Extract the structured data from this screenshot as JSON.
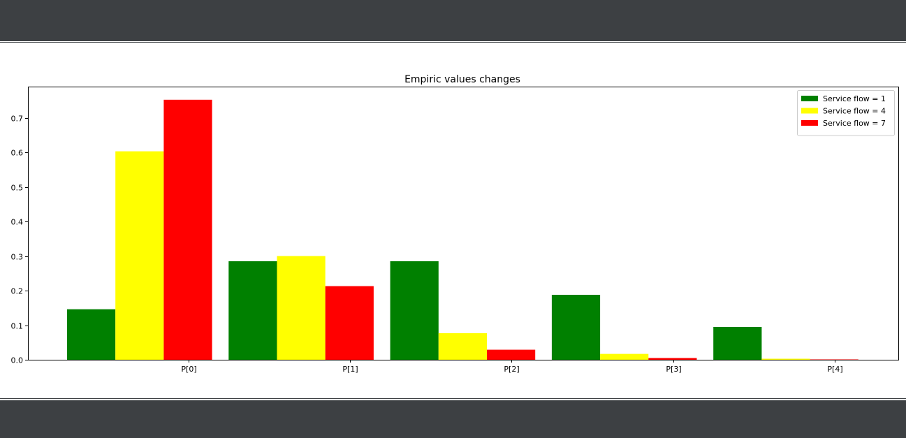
{
  "chart_data": {
    "type": "bar",
    "title": "Empiric values changes",
    "xlabel": "",
    "ylabel": "",
    "categories": [
      "P[0]",
      "P[1]",
      "P[2]",
      "P[3]",
      "P[4]"
    ],
    "series": [
      {
        "name": "Service flow = 1",
        "color": "#008000",
        "values": [
          0.146,
          0.285,
          0.285,
          0.188,
          0.095
        ]
      },
      {
        "name": "Service flow = 4",
        "color": "#ffff00",
        "values": [
          0.603,
          0.3,
          0.077,
          0.017,
          0.003
        ]
      },
      {
        "name": "Service flow = 7",
        "color": "#ff0000",
        "values": [
          0.752,
          0.213,
          0.029,
          0.005,
          0.001
        ]
      }
    ],
    "ylim": [
      0,
      0.79
    ],
    "yticks": [
      0.0,
      0.1,
      0.2,
      0.3,
      0.4,
      0.5,
      0.6,
      0.7
    ],
    "ytick_labels": [
      "0.0",
      "0.1",
      "0.2",
      "0.3",
      "0.4",
      "0.5",
      "0.6",
      "0.7"
    ],
    "grid": false,
    "legend_position": "top-right"
  }
}
